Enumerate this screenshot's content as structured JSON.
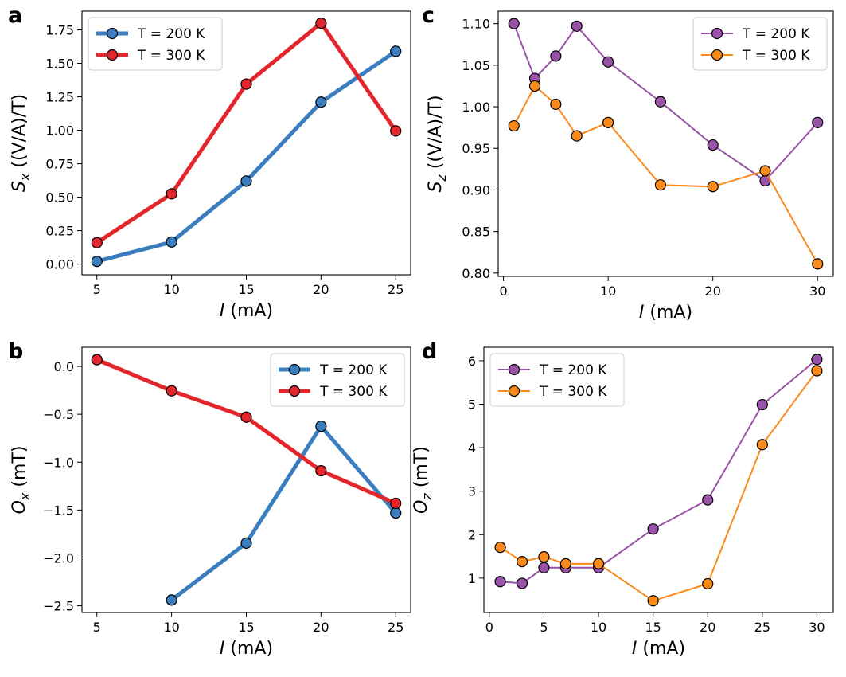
{
  "chart_data": [
    {
      "panel": "a",
      "type": "line",
      "xlabel_var": "I",
      "xlabel_unit": " (mA)",
      "ylabel_var": "S",
      "ylabel_sub": "x",
      "ylabel_unit": " ((V/A)/T)",
      "xlim": [
        4.0,
        26.0
      ],
      "ylim": [
        -0.08,
        1.89
      ],
      "xticks": [
        5,
        10,
        15,
        20,
        25
      ],
      "yticks": [
        0.0,
        0.25,
        0.5,
        0.75,
        1.0,
        1.25,
        1.5,
        1.75
      ],
      "ytick_decimals": 2,
      "legend_position": "top-left",
      "series": [
        {
          "name": "T = 200 K",
          "color": "#3a7ebf",
          "line_weight": "thick",
          "x": [
            5,
            10,
            15,
            20,
            25
          ],
          "y": [
            0.02,
            0.165,
            0.62,
            1.21,
            1.59
          ]
        },
        {
          "name": "T = 300 K",
          "color": "#e3262b",
          "line_weight": "thick",
          "x": [
            5,
            10,
            15,
            20,
            25
          ],
          "y": [
            0.16,
            0.525,
            1.345,
            1.8,
            0.995
          ]
        }
      ]
    },
    {
      "panel": "c",
      "type": "line",
      "xlabel_var": "I",
      "xlabel_unit": " (mA)",
      "ylabel_var": "S",
      "ylabel_sub": "z",
      "ylabel_unit": " ((V/A)/T)",
      "xlim": [
        -0.5,
        31.5
      ],
      "ylim": [
        0.796,
        1.115
      ],
      "xticks": [
        0,
        10,
        20,
        30
      ],
      "yticks": [
        0.8,
        0.85,
        0.9,
        0.95,
        1.0,
        1.05,
        1.1
      ],
      "ytick_decimals": 2,
      "legend_position": "top-right",
      "series": [
        {
          "name": "T = 200 K",
          "color": "#9a52a8",
          "line_weight": "thin",
          "x": [
            1,
            3,
            5,
            7,
            10,
            15,
            20,
            25,
            30
          ],
          "y": [
            1.1,
            1.034,
            1.061,
            1.097,
            1.054,
            1.006,
            0.954,
            0.911,
            0.981
          ]
        },
        {
          "name": "T = 300 K",
          "color": "#fb8a1c",
          "line_weight": "thin",
          "x": [
            1,
            3,
            5,
            7,
            10,
            15,
            20,
            25,
            30
          ],
          "y": [
            0.977,
            1.025,
            1.003,
            0.965,
            0.981,
            0.906,
            0.904,
            0.923,
            0.811
          ]
        }
      ]
    },
    {
      "panel": "b",
      "type": "line",
      "xlabel_var": "I",
      "xlabel_unit": " (mA)",
      "ylabel_var": "O",
      "ylabel_sub": "x",
      "ylabel_unit": " (mT)",
      "xlim": [
        4.0,
        26.0
      ],
      "ylim": [
        -2.57,
        0.2
      ],
      "xticks": [
        5,
        10,
        15,
        20,
        25
      ],
      "yticks": [
        -2.5,
        -2.0,
        -1.5,
        -1.0,
        -0.5,
        0.0
      ],
      "ytick_decimals": 1,
      "legend_position": "top-right",
      "series": [
        {
          "name": "T = 200 K",
          "color": "#3a7ebf",
          "line_weight": "thick",
          "x": [
            10,
            15,
            20,
            25
          ],
          "y": [
            -2.44,
            -1.845,
            -0.625,
            -1.53
          ]
        },
        {
          "name": "T = 300 K",
          "color": "#e3262b",
          "line_weight": "thick",
          "x": [
            5,
            10,
            15,
            20,
            25
          ],
          "y": [
            0.07,
            -0.255,
            -0.53,
            -1.09,
            -1.43
          ]
        }
      ]
    },
    {
      "panel": "d",
      "type": "line",
      "xlabel_var": "I",
      "xlabel_unit": " (mA)",
      "ylabel_var": "O",
      "ylabel_sub": "z",
      "ylabel_unit": " (mT)",
      "xlim": [
        -0.5,
        31.5
      ],
      "ylim": [
        0.21,
        6.31
      ],
      "xticks": [
        0,
        5,
        10,
        15,
        20,
        25,
        30
      ],
      "yticks": [
        1,
        2,
        3,
        4,
        5,
        6
      ],
      "ytick_decimals": 0,
      "legend_position": "top-left",
      "series": [
        {
          "name": "T = 200 K",
          "color": "#9a52a8",
          "line_weight": "thin",
          "x": [
            1,
            3,
            5,
            7,
            10,
            15,
            20,
            25,
            30
          ],
          "y": [
            0.92,
            0.88,
            1.24,
            1.24,
            1.24,
            2.13,
            2.8,
            4.99,
            6.03
          ]
        },
        {
          "name": "T = 300 K",
          "color": "#fb8a1c",
          "line_weight": "thin",
          "x": [
            1,
            3,
            5,
            7,
            10,
            15,
            20,
            25,
            30
          ],
          "y": [
            1.71,
            1.38,
            1.49,
            1.33,
            1.33,
            0.48,
            0.87,
            4.07,
            5.77
          ]
        }
      ]
    }
  ]
}
